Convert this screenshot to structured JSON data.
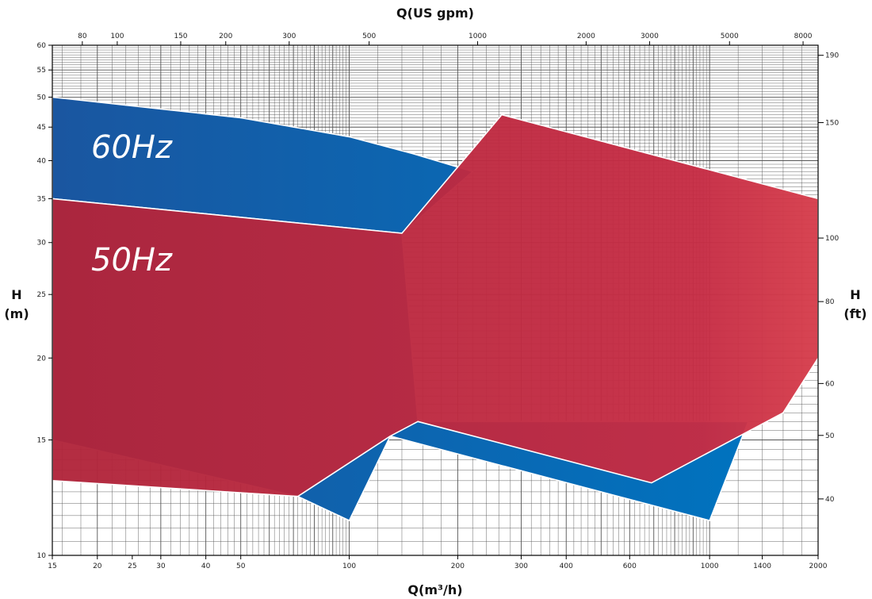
{
  "chart_data": {
    "type": "area",
    "title": "",
    "xlabel_bottom": "Q(m³/h)",
    "xlabel_top": "Q(US gpm)",
    "ylabel_left": [
      "H",
      "(m)"
    ],
    "ylabel_right": [
      "H",
      "(ft)"
    ],
    "x_scale": "log",
    "y_scale": "log",
    "xlim": [
      15,
      2000
    ],
    "ylim": [
      10,
      60
    ],
    "grid": true,
    "x_ticks": [
      "15",
      "20",
      "25",
      "30",
      "40",
      "50",
      "100",
      "200",
      "300",
      "400",
      "600",
      "1000",
      "1400",
      "2000"
    ],
    "y_ticks": [
      "10",
      "15",
      "20",
      "25",
      "30",
      "35",
      "40",
      "45",
      "50",
      "55",
      "60"
    ],
    "top_ticks": [
      "80",
      "100",
      "150",
      "200",
      "300",
      "500",
      "1000",
      "2000",
      "3000",
      "5000",
      "8000"
    ],
    "right_ticks": [
      "40",
      "50",
      "60",
      "80",
      "100",
      "150",
      "190"
    ],
    "series": [
      {
        "name": "60Hz",
        "color": "#0565ad",
        "points": [
          [
            15,
            50
          ],
          [
            25,
            48.5
          ],
          [
            50,
            46.5
          ],
          [
            100,
            43.5
          ],
          [
            150,
            41
          ],
          [
            220,
            38.5
          ],
          [
            140,
            31
          ],
          [
            15,
            35
          ],
          [
            15,
            15
          ],
          [
            72,
            12.3
          ],
          [
            100,
            11.3
          ],
          [
            130,
            15.2
          ],
          [
            1000,
            11.3
          ],
          [
            1280,
            16
          ],
          [
            155,
            16
          ],
          [
            140,
            31
          ],
          [
            15,
            35
          ]
        ]
      },
      {
        "name": "50Hz",
        "color": "#b8263c",
        "points": [
          [
            15,
            35
          ],
          [
            140,
            31
          ],
          [
            265,
            47
          ],
          [
            2000,
            35
          ],
          [
            2000,
            20
          ],
          [
            1600,
            16.5
          ],
          [
            690,
            12.9
          ],
          [
            155,
            16
          ],
          [
            130,
            15.2
          ],
          [
            72,
            12.3
          ],
          [
            15,
            13
          ]
        ]
      }
    ],
    "annotations": [
      "60Hz",
      "50Hz"
    ]
  }
}
